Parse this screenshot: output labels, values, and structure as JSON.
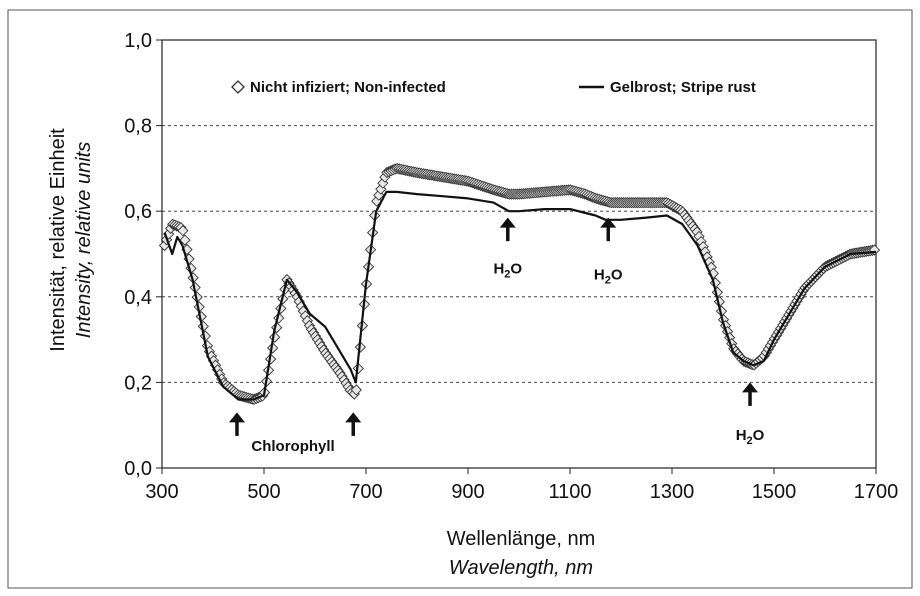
{
  "chart_data": {
    "type": "line",
    "xlabel": "Wellenlänge, nm",
    "xlabel_en": "Wavelength, nm",
    "ylabel": "Intensität, relative Einheit",
    "ylabel_en": "Intensity, relative units",
    "xlim": [
      300,
      1700
    ],
    "ylim": [
      0.0,
      1.0
    ],
    "x_ticks": [
      300,
      500,
      700,
      900,
      1100,
      1300,
      1500,
      1700
    ],
    "y_ticks": [
      0.0,
      0.2,
      0.4,
      0.6,
      0.8,
      1.0
    ],
    "x_tick_labels": [
      "300",
      "500",
      "700",
      "900",
      "1100",
      "1300",
      "1500",
      "1700"
    ],
    "y_tick_labels": [
      "0,0",
      "0,2",
      "0,4",
      "0,6",
      "0,8",
      "1,0"
    ],
    "grid": "horizontal dashed",
    "legend_position": "top",
    "series": [
      {
        "name": "Nicht infiziert; Non-infected",
        "marker": "diamond",
        "color": "#333333",
        "x": [
          305,
          320,
          340,
          360,
          390,
          420,
          450,
          480,
          500,
          520,
          545,
          565,
          590,
          620,
          650,
          670,
          680,
          700,
          720,
          740,
          760,
          800,
          850,
          900,
          950,
          980,
          1000,
          1050,
          1100,
          1130,
          1150,
          1180,
          1200,
          1250,
          1290,
          1320,
          1350,
          1380,
          1400,
          1420,
          1440,
          1460,
          1480,
          1500,
          1530,
          1560,
          1600,
          1650,
          1700
        ],
        "y": [
          0.52,
          0.57,
          0.56,
          0.45,
          0.28,
          0.2,
          0.17,
          0.16,
          0.17,
          0.3,
          0.44,
          0.4,
          0.33,
          0.27,
          0.22,
          0.18,
          0.17,
          0.42,
          0.62,
          0.69,
          0.7,
          0.69,
          0.68,
          0.67,
          0.65,
          0.64,
          0.64,
          0.645,
          0.65,
          0.64,
          0.63,
          0.62,
          0.62,
          0.62,
          0.62,
          0.6,
          0.55,
          0.46,
          0.35,
          0.28,
          0.25,
          0.24,
          0.26,
          0.3,
          0.36,
          0.42,
          0.47,
          0.5,
          0.51
        ]
      },
      {
        "name": "Gelbrost; Stripe rust",
        "marker": "line",
        "color": "#111111",
        "x": [
          305,
          320,
          330,
          340,
          360,
          390,
          420,
          450,
          480,
          500,
          520,
          545,
          565,
          590,
          620,
          650,
          670,
          680,
          700,
          720,
          740,
          760,
          800,
          850,
          900,
          950,
          980,
          1000,
          1050,
          1100,
          1150,
          1170,
          1200,
          1250,
          1290,
          1320,
          1350,
          1380,
          1400,
          1420,
          1440,
          1460,
          1480,
          1500,
          1530,
          1560,
          1600,
          1650,
          1700
        ],
        "y": [
          0.55,
          0.5,
          0.54,
          0.52,
          0.44,
          0.26,
          0.19,
          0.16,
          0.16,
          0.17,
          0.32,
          0.44,
          0.41,
          0.36,
          0.33,
          0.27,
          0.23,
          0.2,
          0.43,
          0.6,
          0.645,
          0.645,
          0.64,
          0.635,
          0.63,
          0.62,
          0.6,
          0.6,
          0.605,
          0.605,
          0.59,
          0.58,
          0.58,
          0.585,
          0.59,
          0.57,
          0.52,
          0.44,
          0.34,
          0.27,
          0.25,
          0.24,
          0.25,
          0.3,
          0.36,
          0.42,
          0.47,
          0.5,
          0.505
        ]
      }
    ],
    "annotations": [
      {
        "id": "chl-1",
        "x": 447,
        "y_tip": 0.13,
        "y_tail": 0.075,
        "label": ""
      },
      {
        "id": "chl-2",
        "x": 675,
        "y_tip": 0.13,
        "y_tail": 0.075,
        "label": ""
      },
      {
        "id": "chl-text",
        "x": 557,
        "y_text": 0.04,
        "label": "Chlorophyll"
      },
      {
        "id": "h2o-1",
        "x": 978,
        "y_tip": 0.585,
        "y_tail": 0.53,
        "label": "H",
        "sub": "2",
        "suffix": "O",
        "y_text": 0.455
      },
      {
        "id": "h2o-2",
        "x": 1175,
        "y_tip": 0.585,
        "y_tail": 0.53,
        "label": "H",
        "sub": "2",
        "suffix": "O",
        "y_text": 0.44
      },
      {
        "id": "h2o-3",
        "x": 1453,
        "y_tip": 0.2,
        "y_tail": 0.145,
        "label": "H",
        "sub": "2",
        "suffix": "O",
        "y_text": 0.065
      }
    ]
  }
}
